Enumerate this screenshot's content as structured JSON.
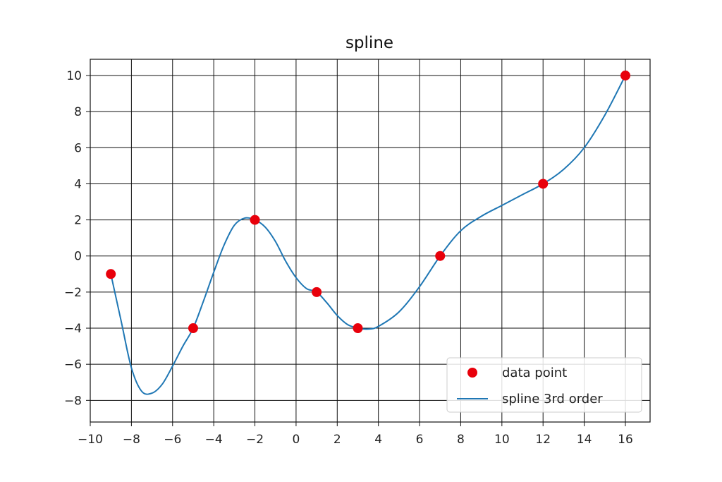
{
  "chart_data": {
    "type": "line",
    "title": "spline",
    "xlabel": "",
    "ylabel": "",
    "xlim": [
      -10,
      17.2
    ],
    "ylim": [
      -9.2,
      10.9
    ],
    "xticks": [
      -10,
      -8,
      -6,
      -4,
      -2,
      0,
      2,
      4,
      6,
      8,
      10,
      12,
      14,
      16
    ],
    "yticks": [
      -8,
      -6,
      -4,
      -2,
      0,
      2,
      4,
      6,
      8,
      10
    ],
    "grid": true,
    "legend_position": "lower-right",
    "series": [
      {
        "name": "data point",
        "kind": "scatter",
        "color": "#e8000b",
        "x": [
          -9,
          -5,
          -2,
          1,
          3,
          7,
          12,
          16
        ],
        "y": [
          -1,
          -4,
          2,
          -2,
          -4,
          0,
          4,
          10
        ]
      },
      {
        "name": "spline 3rd order",
        "kind": "line",
        "color": "#1f77b4",
        "x": [
          -9,
          -8.5,
          -8,
          -7.5,
          -7,
          -6.5,
          -6,
          -5.5,
          -5,
          -4.5,
          -4,
          -3.5,
          -3,
          -2.5,
          -2,
          -1.5,
          -1,
          -0.5,
          0,
          0.5,
          1,
          1.5,
          2,
          2.5,
          3,
          3.5,
          4,
          5,
          6,
          7,
          8,
          9,
          10,
          11,
          12,
          13,
          14,
          15,
          16
        ],
        "y": [
          -1,
          -3.6,
          -6.2,
          -7.5,
          -7.6,
          -7.1,
          -6.1,
          -5.0,
          -4,
          -2.5,
          -0.9,
          0.6,
          1.7,
          2.1,
          2,
          1.6,
          0.8,
          -0.3,
          -1.2,
          -1.8,
          -2,
          -2.6,
          -3.3,
          -3.8,
          -4,
          -4.05,
          -3.9,
          -3.1,
          -1.7,
          0,
          1.4,
          2.2,
          2.8,
          3.4,
          4,
          4.8,
          6.0,
          7.8,
          10
        ]
      }
    ]
  }
}
